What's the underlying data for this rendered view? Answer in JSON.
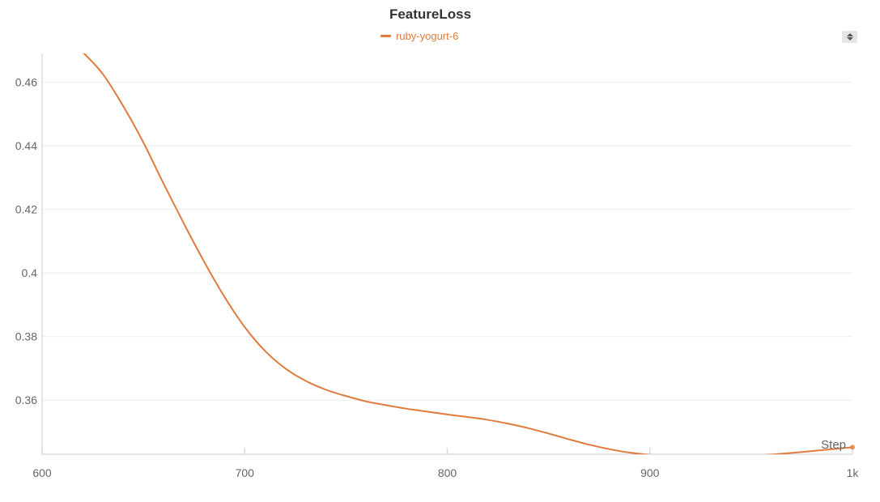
{
  "chart_data": {
    "type": "line",
    "title": "FeatureLoss",
    "xlabel": "Step",
    "ylabel": "",
    "xlim": [
      600,
      1000
    ],
    "ylim": [
      0.343,
      0.469
    ],
    "x_ticks": [
      600,
      700,
      800,
      900,
      1000
    ],
    "x_tick_labels": [
      "600",
      "700",
      "800",
      "900",
      "1k"
    ],
    "y_ticks": [
      0.36,
      0.38,
      0.4,
      0.42,
      0.44,
      0.46
    ],
    "y_tick_labels": [
      "0.36",
      "0.38",
      "0.4",
      "0.42",
      "0.44",
      "0.46"
    ],
    "grid": true,
    "legend_position": "top-center",
    "series": [
      {
        "name": "ruby-yogurt-6",
        "color": "#e07b3c",
        "x": [
          620,
          630,
          640,
          650,
          660,
          670,
          680,
          690,
          700,
          710,
          720,
          730,
          740,
          750,
          760,
          770,
          780,
          790,
          800,
          810,
          820,
          830,
          840,
          850,
          860,
          870,
          880,
          890,
          900,
          910,
          920,
          930,
          940,
          950,
          960,
          970,
          980,
          990,
          1000
        ],
        "y": [
          0.4695,
          0.4625,
          0.4525,
          0.441,
          0.428,
          0.4155,
          0.4035,
          0.3925,
          0.383,
          0.3755,
          0.37,
          0.3661,
          0.3633,
          0.3613,
          0.3596,
          0.3584,
          0.3573,
          0.3564,
          0.3555,
          0.3547,
          0.3538,
          0.3526,
          0.3512,
          0.3495,
          0.3477,
          0.346,
          0.3446,
          0.3435,
          0.3428,
          0.3423,
          0.3421,
          0.3421,
          0.3422,
          0.3425,
          0.3429,
          0.3434,
          0.344,
          0.3446,
          0.3452
        ]
      }
    ]
  },
  "legend": {
    "label": "ruby-yogurt-6",
    "color": "#e07b3c"
  },
  "controls": {
    "scroll_icon": "updown-arrows-icon"
  }
}
